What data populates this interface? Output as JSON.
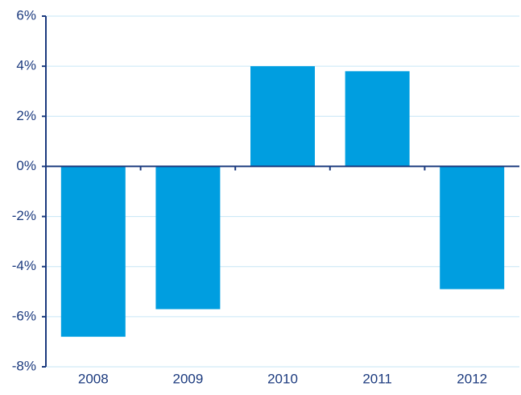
{
  "chart_data": {
    "type": "bar",
    "categories": [
      "2008",
      "2009",
      "2010",
      "2011",
      "2012"
    ],
    "values": [
      -6.8,
      -5.7,
      4.0,
      3.8,
      -4.9
    ],
    "color": "#009ee0",
    "ylim": [
      -8,
      6
    ],
    "yticks": [
      {
        "value": -8,
        "label": "-8%"
      },
      {
        "value": -6,
        "label": "-6%"
      },
      {
        "value": -4,
        "label": "-4%"
      },
      {
        "value": -2,
        "label": "-2%"
      },
      {
        "value": 0,
        "label": "0%"
      },
      {
        "value": 2,
        "label": "2%"
      },
      {
        "value": 4,
        "label": "4%"
      },
      {
        "value": 6,
        "label": "6%"
      }
    ],
    "grid": true
  }
}
